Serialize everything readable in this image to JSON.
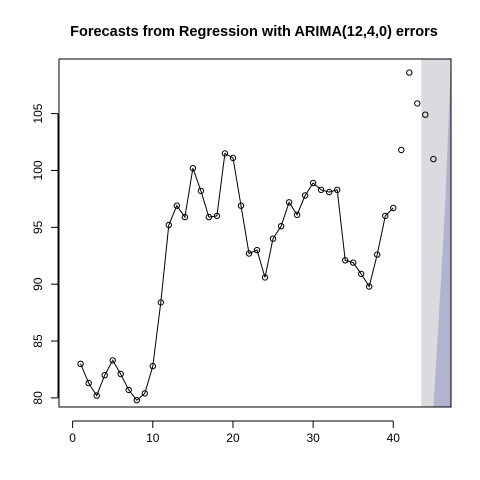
{
  "chart_data": {
    "type": "scatter",
    "title": "Forecasts from Regression with ARIMA(12,4,0) errors",
    "xlabel": "",
    "ylabel": "",
    "xlim": [
      -1.7,
      47.2
    ],
    "ylim": [
      79.2,
      109.8
    ],
    "x_ticks": [
      0,
      10,
      20,
      30,
      40
    ],
    "y_ticks": [
      80,
      85,
      90,
      95,
      100,
      105
    ],
    "grid": false,
    "observed": {
      "style": "line-with-points",
      "x": [
        1,
        2,
        3,
        4,
        5,
        6,
        7,
        8,
        9,
        10,
        11,
        12,
        13,
        14,
        15,
        16,
        17,
        18,
        19,
        20,
        21,
        22,
        23,
        24,
        25,
        26,
        27,
        28,
        29,
        30,
        31,
        32,
        33,
        34,
        35,
        36,
        37,
        38,
        39,
        40
      ],
      "y": [
        83.0,
        81.3,
        80.2,
        82.0,
        83.3,
        82.1,
        80.7,
        79.8,
        80.4,
        82.8,
        88.4,
        95.2,
        96.9,
        95.9,
        100.2,
        98.2,
        95.9,
        96.0,
        101.5,
        101.1,
        96.9,
        92.7,
        93.0,
        90.6,
        94.0,
        95.1,
        97.2,
        96.1,
        97.8,
        98.9,
        98.3,
        98.1,
        98.3,
        92.1,
        91.9,
        90.9,
        89.8,
        92.6,
        96.0,
        96.7
      ]
    },
    "forecast": {
      "style": "points",
      "x": [
        41,
        42,
        43,
        44,
        45
      ],
      "y": [
        101.8,
        108.6,
        105.9,
        104.9,
        101.0
      ]
    },
    "intervals": [
      {
        "level": "outer",
        "color": "#dbdbdf",
        "x": [
          43.5,
          44.5,
          45.5,
          46.5,
          47.2
        ],
        "upper": [
          109.8,
          109.8,
          109.8,
          109.8,
          109.8
        ],
        "lower": [
          79.2,
          79.2,
          79.2,
          79.2,
          79.2
        ]
      },
      {
        "level": "inner",
        "color": "#b1b4cf",
        "x": [
          45.0,
          45.5,
          46.0,
          46.5,
          47.2
        ],
        "upper": [
          79.2,
          85.0,
          91.0,
          97.5,
          109.8
        ],
        "lower": [
          79.2,
          79.2,
          79.2,
          79.2,
          79.2
        ]
      }
    ]
  }
}
